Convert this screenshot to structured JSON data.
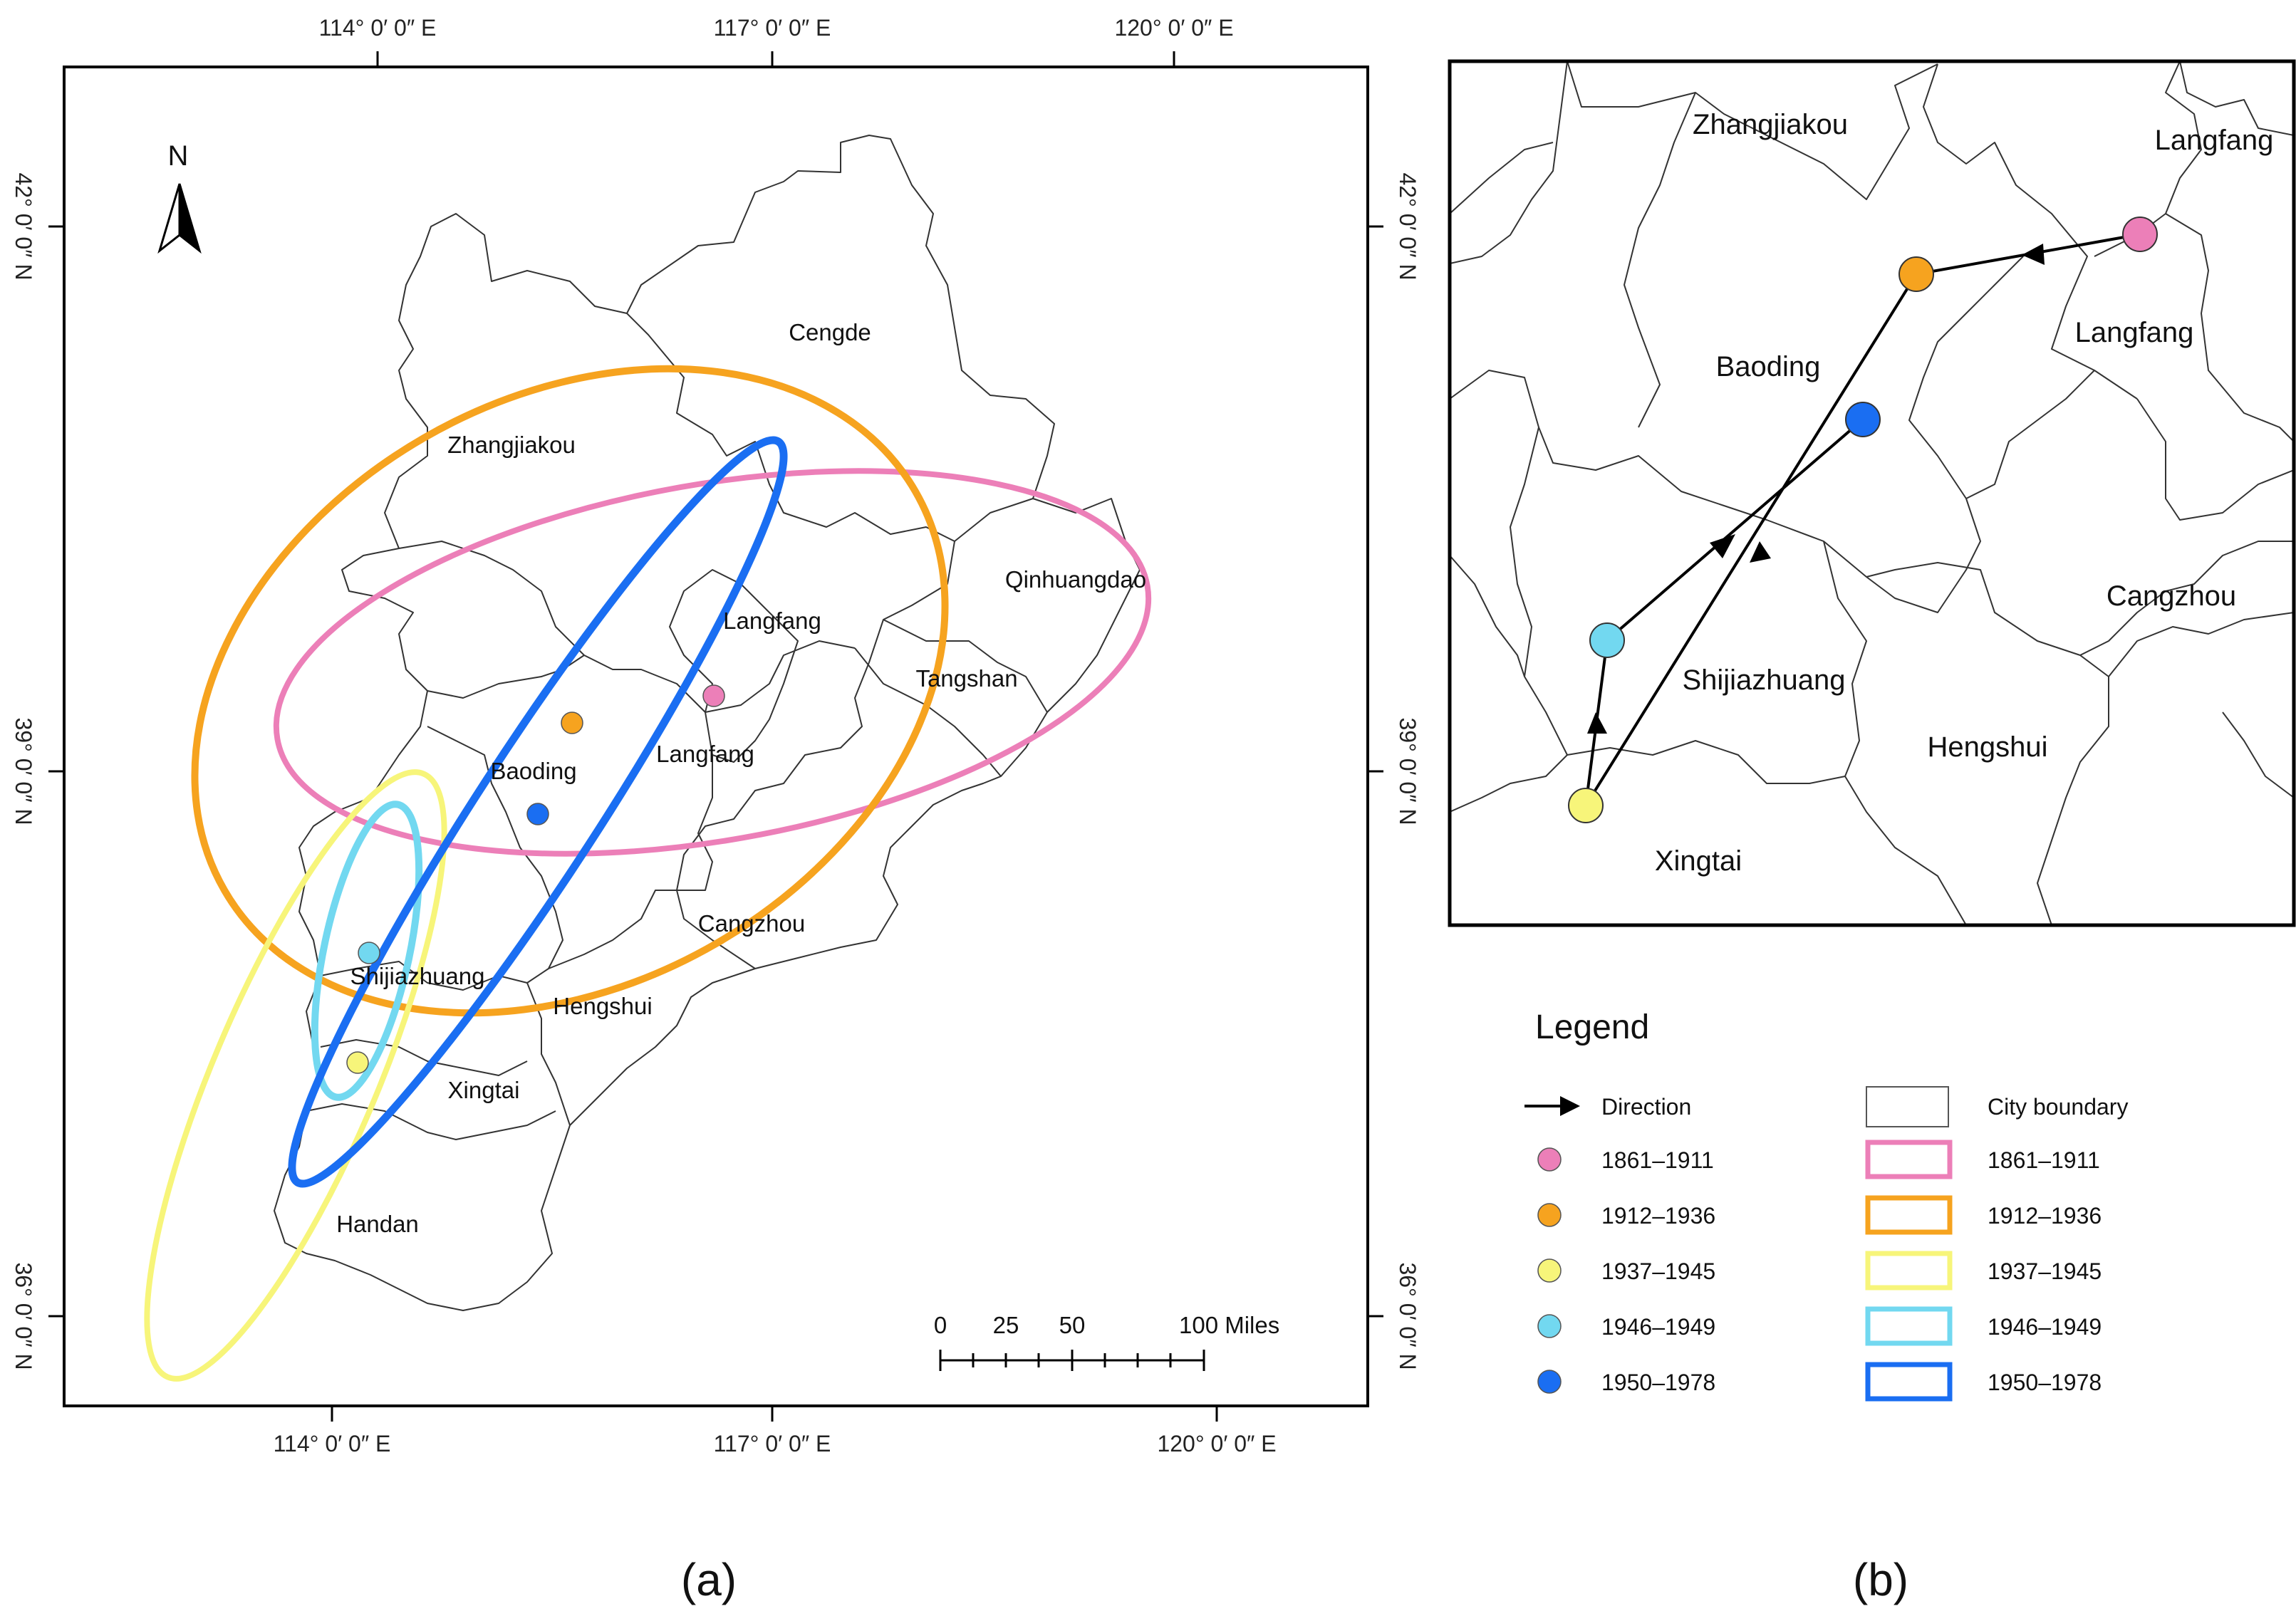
{
  "panel_a": {
    "caption": "(a)",
    "top_lon_ticks": [
      "114° 0′ 0″ E",
      "117° 0′ 0″ E",
      "120° 0′ 0″ E"
    ],
    "bottom_lon_ticks": [
      "114° 0′ 0″ E",
      "117° 0′ 0″ E",
      "120° 0′ 0″ E"
    ],
    "left_lat_ticks": [
      "42° 0′ 0″ N",
      "39° 0′ 0″ N",
      "36° 0′ 0″ N"
    ],
    "right_lat_ticks": [
      "42° 0′ 0″ N",
      "39° 0′ 0″ N",
      "36° 0′ 0″ N"
    ],
    "north_label": "N",
    "cities": [
      {
        "name": "Cengde",
        "id": "cengde"
      },
      {
        "name": "Zhangjiakou",
        "id": "zhangjiakou"
      },
      {
        "name": "Qinhuangdao",
        "id": "qinhuangdao"
      },
      {
        "name": "Langfang",
        "id": "langfang-north"
      },
      {
        "name": "Tangshan",
        "id": "tangshan"
      },
      {
        "name": "Baoding",
        "id": "baoding"
      },
      {
        "name": "Langfang",
        "id": "langfang-south"
      },
      {
        "name": "Cangzhou",
        "id": "cangzhou"
      },
      {
        "name": "Shijiazhuang",
        "id": "shijiazhuang"
      },
      {
        "name": "Hengshui",
        "id": "hengshui"
      },
      {
        "name": "Xingtai",
        "id": "xingtai"
      },
      {
        "name": "Handan",
        "id": "handan"
      }
    ],
    "scale_bar": {
      "ticks": [
        "0",
        "25",
        "50",
        "100 Miles"
      ]
    }
  },
  "panel_b": {
    "caption": "(b)",
    "cities": [
      {
        "name": "Zhangjiakou",
        "id": "zhangjiakou"
      },
      {
        "name": "Langfang",
        "id": "langfang-corner"
      },
      {
        "name": "Langfang",
        "id": "langfang"
      },
      {
        "name": "Baoding",
        "id": "baoding"
      },
      {
        "name": "Cangzhou",
        "id": "cangzhou"
      },
      {
        "name": "Shijiazhuang",
        "id": "shijiazhuang"
      },
      {
        "name": "Hengshui",
        "id": "hengshui"
      },
      {
        "name": "Xingtai",
        "id": "xingtai"
      }
    ]
  },
  "legend": {
    "title": "Legend",
    "direction_label": "Direction",
    "boundary_label": "City boundary",
    "periods": [
      {
        "label": "1861–1911",
        "color": "#ec7fb8"
      },
      {
        "label": "1912–1936",
        "color": "#f6a31f"
      },
      {
        "label": "1937–1945",
        "color": "#f7f57a"
      },
      {
        "label": "1946–1949",
        "color": "#72d8f0"
      },
      {
        "label": "1950–1978",
        "color": "#1a6ef2"
      }
    ]
  }
}
